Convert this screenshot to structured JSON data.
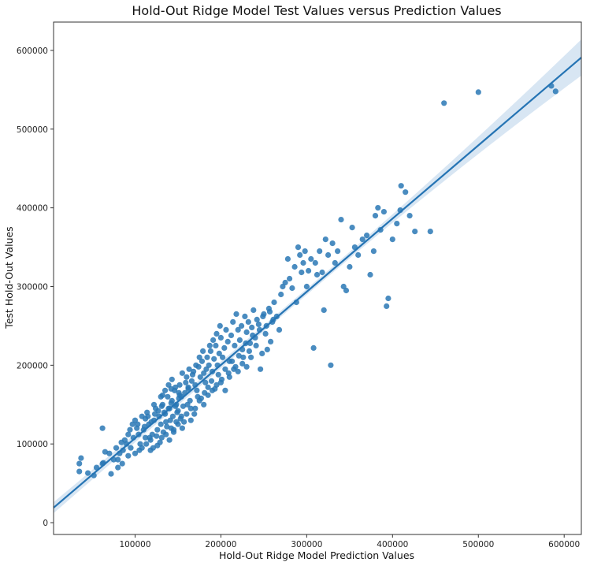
{
  "chart_data": {
    "type": "scatter",
    "title": "Hold-Out Ridge Model Test Values versus Prediction Values",
    "xlabel": "Hold-Out Ridge Model Prediction  Values",
    "ylabel": "Test Hold-Out Values",
    "xlim": [
      5000,
      620000
    ],
    "ylim": [
      -15000,
      636000
    ],
    "x_ticks": [
      100000,
      200000,
      300000,
      400000,
      500000,
      600000
    ],
    "y_ticks": [
      0,
      100000,
      200000,
      300000,
      400000,
      500000,
      600000
    ],
    "grid": false,
    "point_color": "#2a78b5",
    "line_color": "#2574b4",
    "band_color": "#b8d2ea",
    "regression": {
      "x_start": 5000,
      "y_start": 19000,
      "x_end": 620000,
      "y_end": 591000,
      "band_halfwidth_start": 7000,
      "band_halfwidth_end": 23000
    },
    "points": [
      [
        35000,
        75000
      ],
      [
        37000,
        82000
      ],
      [
        35000,
        65000
      ],
      [
        45000,
        63000
      ],
      [
        52000,
        60000
      ],
      [
        55000,
        70000
      ],
      [
        62000,
        120000
      ],
      [
        63000,
        76000
      ],
      [
        65000,
        90000
      ],
      [
        72000,
        62000
      ],
      [
        75000,
        80000
      ],
      [
        78000,
        95000
      ],
      [
        80000,
        70000
      ],
      [
        82000,
        88000
      ],
      [
        85000,
        75000
      ],
      [
        88000,
        105000
      ],
      [
        90000,
        100000
      ],
      [
        92000,
        112000
      ],
      [
        95000,
        95000
      ],
      [
        97000,
        125000
      ],
      [
        100000,
        130000
      ],
      [
        102000,
        120000
      ],
      [
        104000,
        112000
      ],
      [
        106000,
        100000
      ],
      [
        108000,
        135000
      ],
      [
        110000,
        118000
      ],
      [
        112000,
        108000
      ],
      [
        114000,
        140000
      ],
      [
        116000,
        125000
      ],
      [
        118000,
        92000
      ],
      [
        120000,
        112000
      ],
      [
        122000,
        130000
      ],
      [
        124000,
        145000
      ],
      [
        126000,
        118000
      ],
      [
        128000,
        135000
      ],
      [
        130000,
        125000
      ],
      [
        132000,
        150000
      ],
      [
        134000,
        140000
      ],
      [
        136000,
        128000
      ],
      [
        138000,
        160000
      ],
      [
        140000,
        145000
      ],
      [
        142000,
        152000
      ],
      [
        144000,
        135000
      ],
      [
        146000,
        168000
      ],
      [
        148000,
        150000
      ],
      [
        150000,
        142000
      ],
      [
        152000,
        175000
      ],
      [
        154000,
        160000
      ],
      [
        156000,
        148000
      ],
      [
        158000,
        165000
      ],
      [
        160000,
        185000
      ],
      [
        162000,
        170000
      ],
      [
        164000,
        155000
      ],
      [
        166000,
        180000
      ],
      [
        168000,
        192000
      ],
      [
        170000,
        175000
      ],
      [
        172000,
        168000
      ],
      [
        174000,
        198000
      ],
      [
        176000,
        185000
      ],
      [
        178000,
        205000
      ],
      [
        180000,
        190000
      ],
      [
        182000,
        178000
      ],
      [
        184000,
        210000
      ],
      [
        186000,
        200000
      ],
      [
        188000,
        218000
      ],
      [
        190000,
        192000
      ],
      [
        192000,
        208000
      ],
      [
        194000,
        225000
      ],
      [
        196000,
        200000
      ],
      [
        198000,
        215000
      ],
      [
        200000,
        235000
      ],
      [
        202000,
        210000
      ],
      [
        204000,
        222000
      ],
      [
        206000,
        245000
      ],
      [
        208000,
        230000
      ],
      [
        210000,
        205000
      ],
      [
        212000,
        238000
      ],
      [
        214000,
        255000
      ],
      [
        216000,
        225000
      ],
      [
        218000,
        265000
      ],
      [
        220000,
        245000
      ],
      [
        222000,
        232000
      ],
      [
        224000,
        250000
      ],
      [
        226000,
        210000
      ],
      [
        228000,
        262000
      ],
      [
        230000,
        242000
      ],
      [
        232000,
        255000
      ],
      [
        234000,
        228000
      ],
      [
        236000,
        248000
      ],
      [
        238000,
        270000
      ],
      [
        240000,
        235000
      ],
      [
        242000,
        258000
      ],
      [
        244000,
        252000
      ],
      [
        246000,
        195000
      ],
      [
        248000,
        215000
      ],
      [
        250000,
        265000
      ],
      [
        252000,
        240000
      ],
      [
        254000,
        220000
      ],
      [
        256000,
        272000
      ],
      [
        258000,
        230000
      ],
      [
        260000,
        255000
      ],
      [
        262000,
        280000
      ],
      [
        265000,
        262000
      ],
      [
        268000,
        245000
      ],
      [
        270000,
        290000
      ],
      [
        272000,
        300000
      ],
      [
        275000,
        305000
      ],
      [
        278000,
        335000
      ],
      [
        280000,
        310000
      ],
      [
        283000,
        298000
      ],
      [
        286000,
        325000
      ],
      [
        288000,
        280000
      ],
      [
        290000,
        350000
      ],
      [
        292000,
        340000
      ],
      [
        294000,
        318000
      ],
      [
        296000,
        330000
      ],
      [
        298000,
        345000
      ],
      [
        300000,
        300000
      ],
      [
        302000,
        320000
      ],
      [
        305000,
        335000
      ],
      [
        308000,
        222000
      ],
      [
        310000,
        330000
      ],
      [
        312000,
        315000
      ],
      [
        315000,
        345000
      ],
      [
        318000,
        318000
      ],
      [
        320000,
        270000
      ],
      [
        322000,
        360000
      ],
      [
        325000,
        340000
      ],
      [
        328000,
        200000
      ],
      [
        330000,
        355000
      ],
      [
        333000,
        330000
      ],
      [
        336000,
        345000
      ],
      [
        340000,
        385000
      ],
      [
        343000,
        300000
      ],
      [
        346000,
        295000
      ],
      [
        350000,
        325000
      ],
      [
        353000,
        375000
      ],
      [
        356000,
        350000
      ],
      [
        360000,
        340000
      ],
      [
        365000,
        360000
      ],
      [
        370000,
        365000
      ],
      [
        374000,
        315000
      ],
      [
        378000,
        345000
      ],
      [
        380000,
        390000
      ],
      [
        383000,
        400000
      ],
      [
        386000,
        372000
      ],
      [
        390000,
        395000
      ],
      [
        393000,
        275000
      ],
      [
        395000,
        285000
      ],
      [
        400000,
        360000
      ],
      [
        405000,
        380000
      ],
      [
        409000,
        397000
      ],
      [
        410000,
        428000
      ],
      [
        415000,
        420000
      ],
      [
        420000,
        390000
      ],
      [
        426000,
        370000
      ],
      [
        444000,
        370000
      ],
      [
        460000,
        533000
      ],
      [
        500000,
        547000
      ],
      [
        585000,
        555000
      ],
      [
        590000,
        548000
      ],
      [
        62000,
        75000
      ],
      [
        70000,
        88000
      ],
      [
        84000,
        102000
      ],
      [
        92000,
        85000
      ],
      [
        98000,
        108000
      ],
      [
        105000,
        92000
      ],
      [
        111000,
        122000
      ],
      [
        117000,
        108000
      ],
      [
        121000,
        95000
      ],
      [
        125000,
        110000
      ],
      [
        129000,
        102000
      ],
      [
        133000,
        115000
      ],
      [
        137000,
        122000
      ],
      [
        141000,
        130000
      ],
      [
        145000,
        118000
      ],
      [
        149000,
        140000
      ],
      [
        153000,
        132000
      ],
      [
        157000,
        128000
      ],
      [
        161000,
        150000
      ],
      [
        165000,
        145000
      ],
      [
        169000,
        138000
      ],
      [
        173000,
        160000
      ],
      [
        177000,
        158000
      ],
      [
        181000,
        165000
      ],
      [
        185000,
        172000
      ],
      [
        189000,
        180000
      ],
      [
        193000,
        170000
      ],
      [
        197000,
        188000
      ],
      [
        201000,
        182000
      ],
      [
        205000,
        195000
      ],
      [
        209000,
        190000
      ],
      [
        213000,
        205000
      ],
      [
        217000,
        198000
      ],
      [
        221000,
        212000
      ],
      [
        225000,
        220000
      ],
      [
        229000,
        228000
      ],
      [
        233000,
        218000
      ],
      [
        237000,
        238000
      ],
      [
        241000,
        225000
      ],
      [
        245000,
        245000
      ],
      [
        249000,
        262000
      ],
      [
        253000,
        250000
      ],
      [
        257000,
        268000
      ],
      [
        261000,
        258000
      ],
      [
        130000,
        160000
      ],
      [
        135000,
        168000
      ],
      [
        139000,
        175000
      ],
      [
        143000,
        182000
      ],
      [
        147000,
        172000
      ],
      [
        151000,
        165000
      ],
      [
        155000,
        190000
      ],
      [
        159000,
        178000
      ],
      [
        163000,
        195000
      ],
      [
        167000,
        188000
      ],
      [
        171000,
        200000
      ],
      [
        175000,
        210000
      ],
      [
        179000,
        218000
      ],
      [
        183000,
        195000
      ],
      [
        187000,
        225000
      ],
      [
        191000,
        232000
      ],
      [
        195000,
        240000
      ],
      [
        199000,
        250000
      ],
      [
        140000,
        105000
      ],
      [
        145000,
        115000
      ],
      [
        150000,
        125000
      ],
      [
        155000,
        120000
      ],
      [
        160000,
        138000
      ],
      [
        165000,
        130000
      ],
      [
        170000,
        145000
      ],
      [
        175000,
        155000
      ],
      [
        180000,
        150000
      ],
      [
        185000,
        162000
      ],
      [
        190000,
        168000
      ],
      [
        195000,
        175000
      ],
      [
        200000,
        178000
      ],
      [
        205000,
        168000
      ],
      [
        210000,
        185000
      ],
      [
        215000,
        195000
      ],
      [
        220000,
        192000
      ],
      [
        225000,
        202000
      ],
      [
        230000,
        198000
      ],
      [
        235000,
        210000
      ],
      [
        115000,
        135000
      ],
      [
        119000,
        128000
      ],
      [
        123000,
        138000
      ],
      [
        127000,
        142000
      ],
      [
        131000,
        148000
      ],
      [
        135000,
        138000
      ],
      [
        139000,
        145000
      ],
      [
        143000,
        155000
      ],
      [
        147000,
        148000
      ],
      [
        151000,
        158000
      ],
      [
        100000,
        88000
      ],
      [
        108000,
        95000
      ],
      [
        113000,
        100000
      ],
      [
        118000,
        105000
      ],
      [
        126000,
        98000
      ],
      [
        131000,
        108000
      ],
      [
        136000,
        112000
      ],
      [
        142000,
        120000
      ],
      [
        148000,
        128000
      ],
      [
        154000,
        135000
      ],
      [
        80000,
        80000
      ],
      [
        86000,
        92000
      ],
      [
        94000,
        118000
      ],
      [
        103000,
        125000
      ],
      [
        112000,
        132000
      ],
      [
        122000,
        150000
      ],
      [
        132000,
        162000
      ],
      [
        142000,
        170000
      ],
      [
        152000,
        162000
      ],
      [
        162000,
        172000
      ]
    ]
  }
}
